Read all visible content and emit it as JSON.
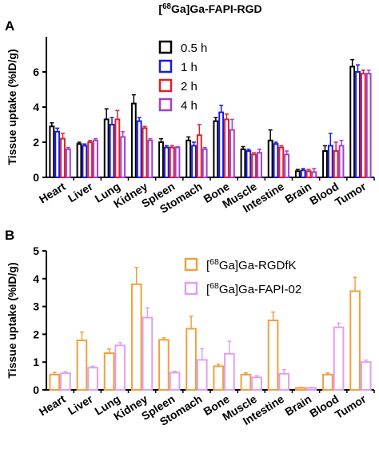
{
  "chart_data": [
    {
      "type": "bar",
      "panel": "A",
      "title": "[68Ga]Ga-FAPI-RGD",
      "y_label": "Tissue uptake (%ID/g)",
      "categories": [
        "Heart",
        "Liver",
        "Lung",
        "Kidney",
        "Spleen",
        "Stomach",
        "Bone",
        "Muscle",
        "Intestine",
        "Brain",
        "Blood",
        "Tumor"
      ],
      "ylim": [
        0,
        8
      ],
      "yticks": [
        0,
        2,
        4,
        6
      ],
      "series": [
        {
          "name": "0.5 h",
          "color": "#000000",
          "values": [
            2.9,
            1.9,
            3.3,
            4.2,
            2.0,
            2.1,
            3.2,
            1.6,
            2.1,
            0.35,
            1.5,
            6.3
          ],
          "errors": [
            0.2,
            0.1,
            0.6,
            0.5,
            0.2,
            0.2,
            0.2,
            0.15,
            0.6,
            0.1,
            0.3,
            0.4
          ]
        },
        {
          "name": "1 h",
          "color": "#1a1ae0",
          "values": [
            2.6,
            1.8,
            3.0,
            3.2,
            1.7,
            1.8,
            3.7,
            1.5,
            1.9,
            0.4,
            1.8,
            6.0
          ],
          "errors": [
            0.2,
            0.1,
            0.4,
            0.2,
            0.1,
            0.2,
            0.4,
            0.1,
            0.1,
            0.1,
            0.7,
            0.4
          ]
        },
        {
          "name": "2 h",
          "color": "#e0202a",
          "values": [
            2.2,
            2.0,
            3.3,
            2.8,
            1.7,
            2.4,
            3.3,
            1.3,
            1.7,
            0.35,
            1.5,
            5.9
          ],
          "errors": [
            0.3,
            0.1,
            0.5,
            0.1,
            0.1,
            0.6,
            0.3,
            0.1,
            0.1,
            0.1,
            0.5,
            0.2
          ]
        },
        {
          "name": "4 h",
          "color": "#a040d0",
          "values": [
            1.6,
            2.1,
            2.3,
            2.1,
            1.7,
            1.6,
            2.7,
            1.4,
            1.3,
            0.3,
            1.8,
            5.9
          ],
          "errors": [
            0.1,
            0.1,
            0.3,
            0.1,
            0.05,
            0.1,
            0.6,
            0.2,
            0.2,
            0.2,
            0.3,
            0.2
          ]
        }
      ]
    },
    {
      "type": "bar",
      "panel": "B",
      "y_label": "Tissue uptake (%ID/g)",
      "categories": [
        "Heart",
        "Liver",
        "Lung",
        "Kidney",
        "Spleen",
        "Stomach",
        "Bone",
        "Muscle",
        "Intestine",
        "Brain",
        "Blood",
        "Tumor"
      ],
      "ylim": [
        0,
        5
      ],
      "yticks": [
        0,
        1,
        2,
        3,
        4,
        5
      ],
      "series": [
        {
          "name": "[68Ga]Ga-RGDfK",
          "color": "#f0a040",
          "values": [
            0.55,
            1.78,
            1.32,
            3.8,
            1.8,
            2.2,
            0.85,
            0.55,
            2.5,
            0.07,
            0.55,
            3.55
          ],
          "errors": [
            0.08,
            0.3,
            0.15,
            0.6,
            0.07,
            0.45,
            0.07,
            0.06,
            0.3,
            0.02,
            0.06,
            0.5
          ]
        },
        {
          "name": "[68Ga]Ga-FAPI-02",
          "color": "#e0a0f0",
          "values": [
            0.6,
            0.8,
            1.6,
            2.6,
            0.62,
            1.08,
            1.3,
            0.45,
            0.58,
            0.07,
            2.25,
            1.0
          ],
          "errors": [
            0.06,
            0.05,
            0.1,
            0.35,
            0.05,
            0.4,
            0.45,
            0.06,
            0.15,
            0.02,
            0.15,
            0.07
          ]
        }
      ]
    }
  ]
}
